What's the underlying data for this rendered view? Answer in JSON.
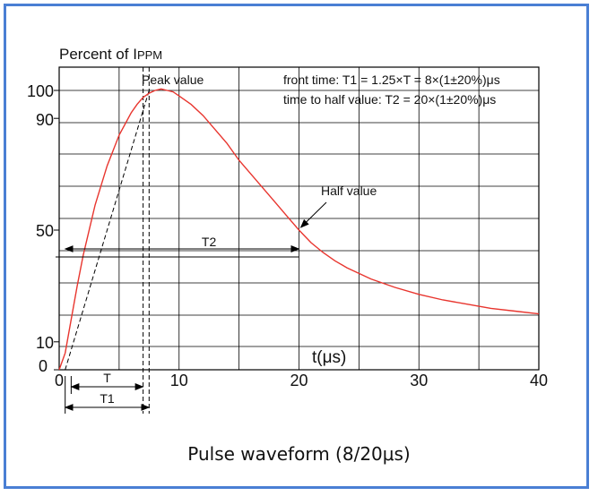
{
  "chart_data": {
    "type": "line",
    "ylabel_main": "Percent of I",
    "ylabel_sub": "PPM",
    "xlabel": "t(μs)",
    "x_ticks": [
      "0",
      "10",
      "20",
      "30",
      "40"
    ],
    "x_tick_values": [
      0,
      10,
      20,
      30,
      40
    ],
    "y_ticks": [
      "0",
      "10",
      "50",
      "90",
      "100"
    ],
    "y_tick_values": [
      0,
      10,
      50,
      90,
      100
    ],
    "xlim": [
      0,
      40
    ],
    "ylim": [
      0,
      100
    ],
    "grid": true,
    "legend": [
      "front time: T1 = 1.25×T = 8×(1±20%)μs",
      "time to half value: T2 = 20×(1±20%)μs"
    ],
    "annotations": {
      "peak": "Peak value",
      "half": "Half value",
      "t2": "T2",
      "t": "T",
      "t1": "T1"
    },
    "series": [
      {
        "x": [
          0,
          0.5,
          1,
          1.5,
          2,
          3,
          4,
          5,
          6,
          6.5,
          7,
          7.5,
          8,
          8.5,
          9,
          9.5,
          10,
          11,
          12,
          13,
          14,
          15,
          16,
          17,
          18,
          19,
          20,
          21,
          22,
          23,
          24,
          25,
          26,
          28,
          30,
          32,
          34,
          36,
          38,
          40
        ],
        "y": [
          0,
          6,
          18,
          30,
          41,
          59,
          73,
          84,
          92,
          95,
          97.5,
          99,
          100,
          100.5,
          100,
          99.5,
          98,
          95,
          91,
          86,
          81,
          75,
          70,
          65,
          60,
          55,
          50,
          45.5,
          42,
          39,
          36.5,
          34.5,
          32.5,
          29.5,
          27,
          25,
          23.5,
          22,
          21,
          20
        ]
      }
    ],
    "dashed_front_line": {
      "x": [
        0.5,
        7.5
      ],
      "y": [
        0,
        100
      ]
    },
    "dashed_verticals": [
      7,
      7.5
    ],
    "t_span": [
      1,
      7
    ],
    "t1_span": [
      0.5,
      7.5
    ],
    "t2_span": [
      0.5,
      20
    ],
    "half_point": [
      20,
      50
    ],
    "colors": {
      "curve": "#e8352e",
      "grid": "#000000",
      "border": "#4a7fd4"
    }
  },
  "caption": "Pulse waveform (8/20μs)"
}
